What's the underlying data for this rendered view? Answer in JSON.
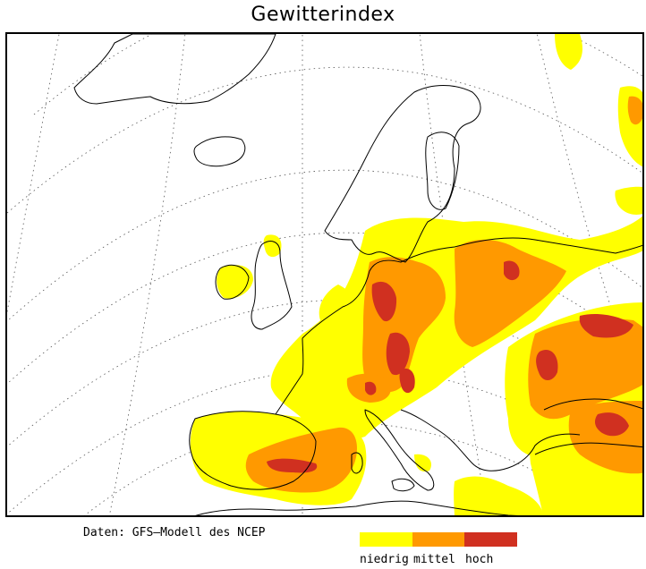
{
  "title": "Gewitterindex",
  "source_note": "Daten: GFS–Modell des NCEP",
  "legend": {
    "items": [
      {
        "label": "niedrig",
        "color": "#ffff00"
      },
      {
        "label": "mittel",
        "color": "#ff9900"
      },
      {
        "label": "hoch",
        "color": "#d03020"
      }
    ]
  },
  "map": {
    "region": "Europe",
    "colors": {
      "coastline": "#000000",
      "graticule": "#555555",
      "niedrig": "#ffff00",
      "mittel": "#ff9900",
      "hoch": "#d03020"
    }
  }
}
